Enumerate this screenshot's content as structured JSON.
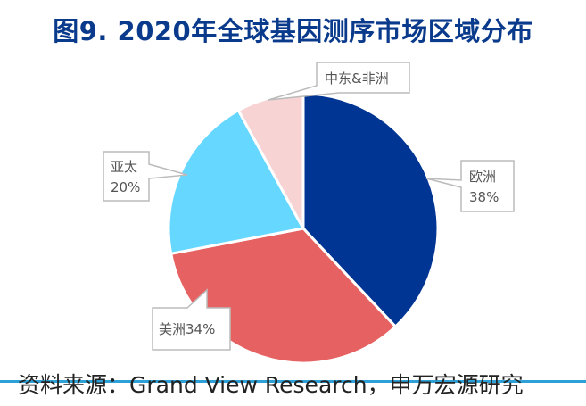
{
  "title": "图9. 2020年全球基因测序市场区域分布",
  "source": "资料来源：Grand View Research，申万宏源研究",
  "chart_data": {
    "type": "pie",
    "title": "图9. 2020年全球基因测序市场区域分布",
    "start_angle_deg": 0,
    "direction": "clockwise",
    "slices": [
      {
        "label": "欧洲",
        "value": 38,
        "value_label": "38%",
        "color": "#003594"
      },
      {
        "label": "美洲",
        "value": 34,
        "value_label": "34%",
        "display": "美洲34%",
        "color": "#e66262"
      },
      {
        "label": "亚太",
        "value": 20,
        "value_label": "20%",
        "color": "#66d7ff"
      },
      {
        "label": "中东&非洲",
        "value": 8,
        "value_label": "",
        "color": "#f8d3d4"
      }
    ]
  }
}
